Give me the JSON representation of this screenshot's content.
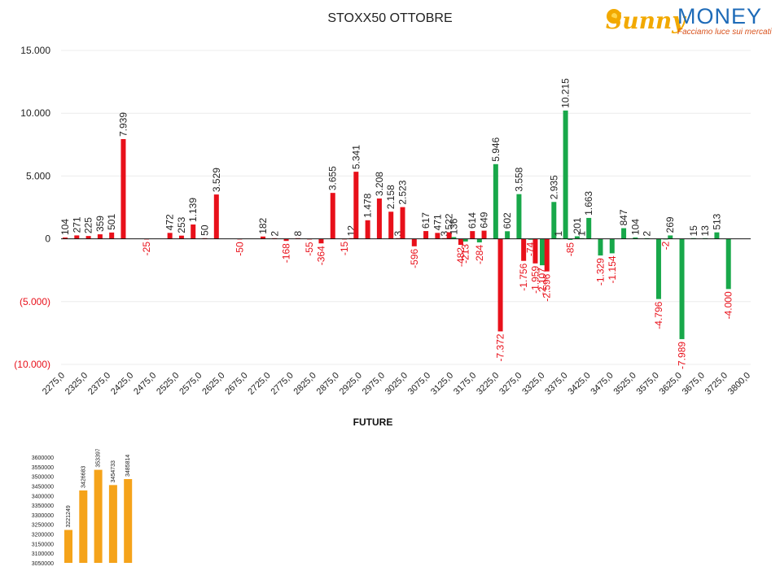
{
  "title": "STOXX50 OTTOBRE",
  "brand": {
    "word1": "Sunny",
    "word2": "MONEY",
    "tagline": "Facciamo luce sui mercati",
    "colors": {
      "sunny": "#f2a900",
      "money": "#1e6bb8",
      "tagline": "#d9531e"
    }
  },
  "chart_data": [
    {
      "type": "bar",
      "xlabel": "FUTURE",
      "ylim": [
        -10000,
        15000
      ],
      "y_ticks": [
        "15.000",
        "10.000",
        "5.000",
        "0",
        "(5.000)",
        "(10.000)"
      ],
      "x_ticks": [
        "2275,0",
        "2325,0",
        "2375,0",
        "2425,0",
        "2475,0",
        "2525,0",
        "2575,0",
        "2625,0",
        "2675,0",
        "2725,0",
        "2775,0",
        "2825,0",
        "2875,0",
        "2925,0",
        "2975,0",
        "3025,0",
        "3075,0",
        "3125,0",
        "3175,0",
        "3225,0",
        "3275,0",
        "3325,0",
        "3375,0",
        "3425,0",
        "3475,0",
        "3525,0",
        "3575,0",
        "3625,0",
        "3675,0",
        "3725,0",
        "3800,0"
      ],
      "colors": {
        "red": "#e8101a",
        "green": "#18a84a",
        "neg_label": "#e8101a",
        "pos_label": "#222222"
      },
      "bars": [
        {
          "x": 2275,
          "value": 104,
          "label": "104",
          "color": "red"
        },
        {
          "x": 2300,
          "value": 271,
          "label": "271",
          "color": "red"
        },
        {
          "x": 2325,
          "value": 225,
          "label": "225",
          "color": "red"
        },
        {
          "x": 2350,
          "value": 359,
          "label": "359",
          "color": "red"
        },
        {
          "x": 2375,
          "value": 501,
          "label": "501",
          "color": "red"
        },
        {
          "x": 2400,
          "value": 7939,
          "label": "7.939",
          "color": "red"
        },
        {
          "x": 2450,
          "value": -25,
          "label": "-25",
          "color": "red"
        },
        {
          "x": 2500,
          "value": 472,
          "label": "472",
          "color": "red"
        },
        {
          "x": 2525,
          "value": 253,
          "label": "253",
          "color": "red"
        },
        {
          "x": 2550,
          "value": 1139,
          "label": "1.139",
          "color": "red"
        },
        {
          "x": 2575,
          "value": 50,
          "label": "50",
          "color": "red"
        },
        {
          "x": 2600,
          "value": 3529,
          "label": "3.529",
          "color": "red"
        },
        {
          "x": 2650,
          "value": -50,
          "label": "-50",
          "color": "red"
        },
        {
          "x": 2700,
          "value": 182,
          "label": "182",
          "color": "red"
        },
        {
          "x": 2725,
          "value": 2,
          "label": "2",
          "color": "red"
        },
        {
          "x": 2750,
          "value": -168,
          "label": "-168",
          "color": "red"
        },
        {
          "x": 2775,
          "value": 8,
          "label": "8",
          "color": "red"
        },
        {
          "x": 2800,
          "value": -55,
          "label": "-55",
          "color": "red"
        },
        {
          "x": 2825,
          "value": -364,
          "label": "-364",
          "color": "red"
        },
        {
          "x": 2850,
          "value": 3655,
          "label": "3.655",
          "color": "red"
        },
        {
          "x": 2875,
          "value": -15,
          "label": "-15",
          "color": "red"
        },
        {
          "x": 2890,
          "value": 12,
          "label": "12",
          "color": "red"
        },
        {
          "x": 2900,
          "value": 5341,
          "label": "5.341",
          "color": "red"
        },
        {
          "x": 2925,
          "value": 1478,
          "label": "1.478",
          "color": "red"
        },
        {
          "x": 2950,
          "value": 3208,
          "label": "3.208",
          "color": "red"
        },
        {
          "x": 2975,
          "value": 2158,
          "label": "2.158",
          "color": "red"
        },
        {
          "x": 2990,
          "value": 3,
          "label": "3",
          "color": "red"
        },
        {
          "x": 3000,
          "value": 2523,
          "label": "2.523",
          "color": "red"
        },
        {
          "x": 3025,
          "value": -596,
          "label": "-596",
          "color": "red"
        },
        {
          "x": 3050,
          "value": 617,
          "label": "617",
          "color": "red"
        },
        {
          "x": 3075,
          "value": 471,
          "label": "471",
          "color": "red"
        },
        {
          "x": 3090,
          "value": 3,
          "label": "3",
          "color": "red"
        },
        {
          "x": 3100,
          "value": 522,
          "label": "522",
          "color": "red"
        },
        {
          "x": 3110,
          "value": 136,
          "label": "136",
          "color": "green"
        },
        {
          "x": 3125,
          "value": -482,
          "label": "-482",
          "color": "red"
        },
        {
          "x": 3135,
          "value": -213,
          "label": "-213",
          "color": "green"
        },
        {
          "x": 3150,
          "value": 614,
          "label": "614",
          "color": "red"
        },
        {
          "x": 3165,
          "value": -284,
          "label": "-284",
          "color": "green"
        },
        {
          "x": 3175,
          "value": 649,
          "label": "649",
          "color": "red"
        },
        {
          "x": 3200,
          "value": 5946,
          "label": "5.946",
          "color": "green"
        },
        {
          "x": 3210,
          "value": -7372,
          "label": "-7.372",
          "color": "red"
        },
        {
          "x": 3225,
          "value": 602,
          "label": "602",
          "color": "green"
        },
        {
          "x": 3250,
          "value": 3558,
          "label": "3.558",
          "color": "green"
        },
        {
          "x": 3260,
          "value": -1756,
          "label": "-1.756",
          "color": "red"
        },
        {
          "x": 3275,
          "value": -74,
          "label": "-74",
          "color": "green"
        },
        {
          "x": 3285,
          "value": -1959,
          "label": "-1.959",
          "color": "red"
        },
        {
          "x": 3300,
          "value": -2107,
          "label": "-2.107",
          "color": "green"
        },
        {
          "x": 3310,
          "value": -2596,
          "label": "-2.596",
          "color": "red"
        },
        {
          "x": 3325,
          "value": 2935,
          "label": "2.935",
          "color": "green"
        },
        {
          "x": 3335,
          "value": 1,
          "label": "1",
          "color": "green"
        },
        {
          "x": 3350,
          "value": 10215,
          "label": "10.215",
          "color": "green"
        },
        {
          "x": 3360,
          "value": -85,
          "label": "-85",
          "color": "green"
        },
        {
          "x": 3375,
          "value": 201,
          "label": "201",
          "color": "green"
        },
        {
          "x": 3385,
          "value": 1,
          "label": "1",
          "color": "green"
        },
        {
          "x": 3400,
          "value": 1663,
          "label": "1.663",
          "color": "green"
        },
        {
          "x": 3425,
          "value": -1329,
          "label": "-1.329",
          "color": "green"
        },
        {
          "x": 3450,
          "value": -1154,
          "label": "-1.154",
          "color": "green"
        },
        {
          "x": 3475,
          "value": 847,
          "label": "847",
          "color": "green"
        },
        {
          "x": 3500,
          "value": 104,
          "label": "104",
          "color": "green"
        },
        {
          "x": 3525,
          "value": 2,
          "label": "2",
          "color": "green"
        },
        {
          "x": 3550,
          "value": -4796,
          "label": "-4.796",
          "color": "green"
        },
        {
          "x": 3565,
          "value": -2,
          "label": "-2",
          "color": "green"
        },
        {
          "x": 3575,
          "value": 269,
          "label": "269",
          "color": "green"
        },
        {
          "x": 3600,
          "value": -7989,
          "label": "-7.989",
          "color": "green"
        },
        {
          "x": 3625,
          "value": 15,
          "label": "15",
          "color": "green"
        },
        {
          "x": 3650,
          "value": 13,
          "label": "13",
          "color": "green"
        },
        {
          "x": 3675,
          "value": 513,
          "label": "513",
          "color": "green"
        },
        {
          "x": 3700,
          "value": -4000,
          "label": "-4.000",
          "color": "green"
        }
      ]
    },
    {
      "type": "bar",
      "ylim": [
        3050000,
        3600000
      ],
      "y_ticks": [
        "3600000",
        "3550000",
        "3500000",
        "3450000",
        "3400000",
        "3350000",
        "3300000",
        "3250000",
        "3200000",
        "3150000",
        "3100000",
        "3050000"
      ],
      "color": "#f5a31a",
      "values": [
        3221249,
        3426683,
        3533977,
        3454733,
        3485814
      ],
      "labels": [
        "3221249",
        "3426683",
        "3533977",
        "3454733",
        "3485814"
      ]
    }
  ]
}
